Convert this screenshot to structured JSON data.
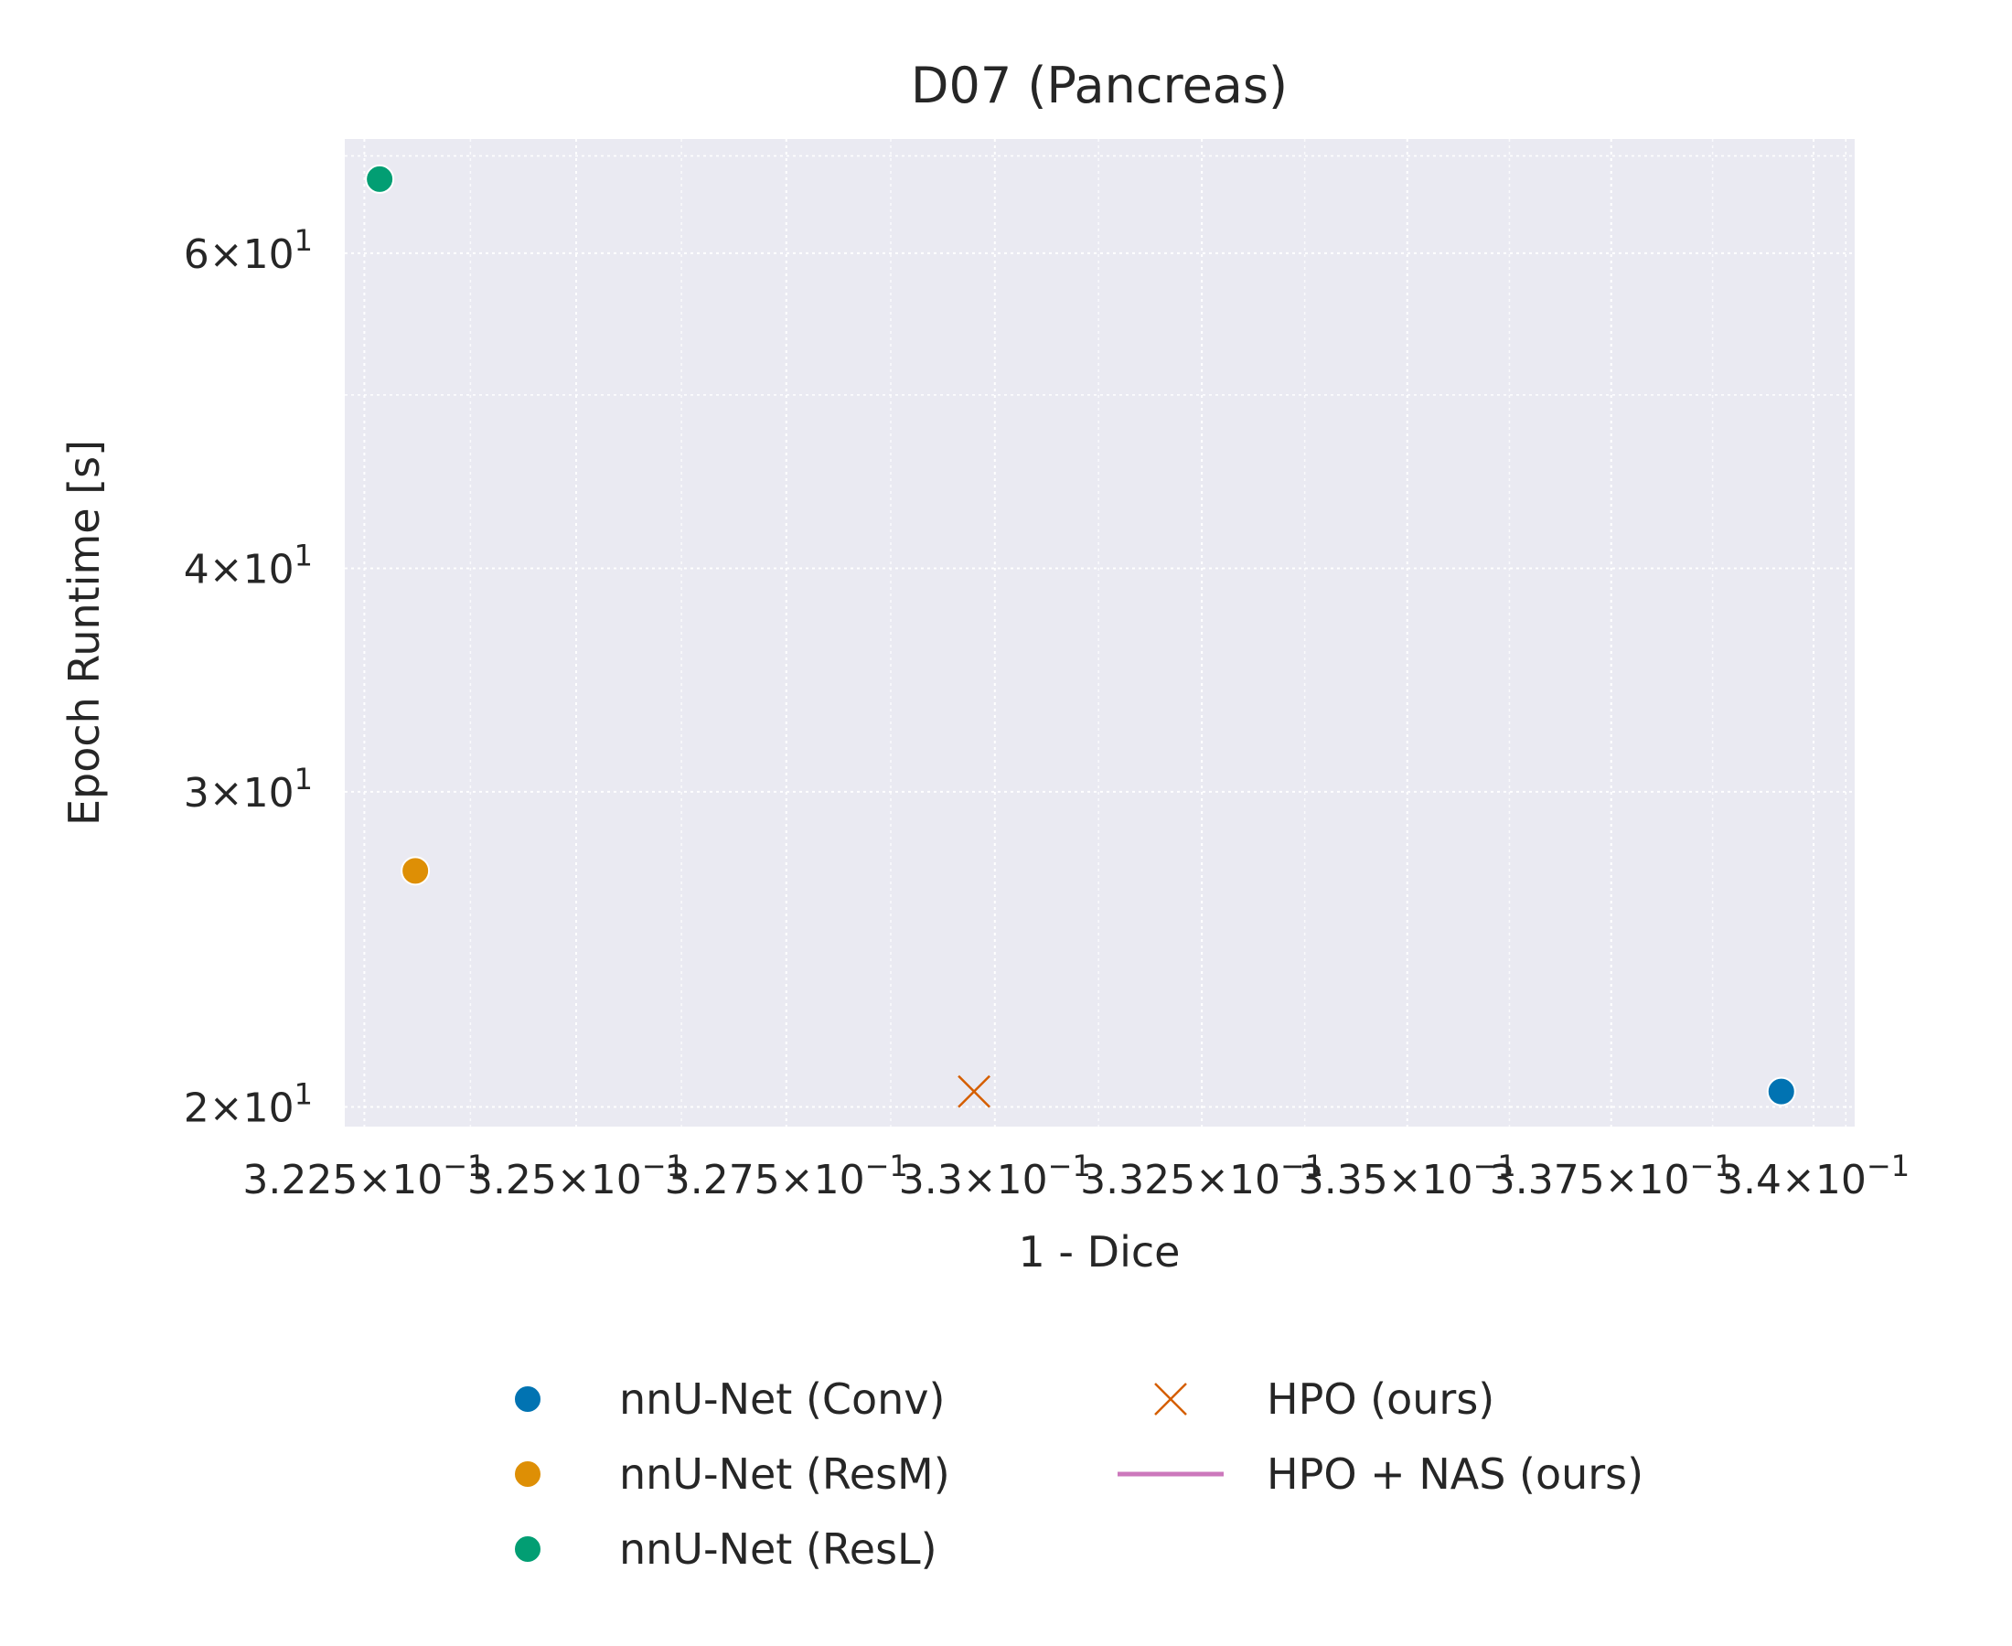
{
  "chart_data": {
    "type": "scatter",
    "title": "D07 (Pancreas)",
    "xlabel": "1 - Dice",
    "ylabel": "Epoch Runtime [s]",
    "xscale": "log",
    "yscale": "log",
    "xlim": [
      0.32227,
      0.34051
    ],
    "ylim": [
      19.5,
      69.5
    ],
    "xticks": [
      {
        "value": 0.3225,
        "mantissa": "3.225",
        "exp": "−1"
      },
      {
        "value": 0.325,
        "mantissa": "3.25",
        "exp": "−1"
      },
      {
        "value": 0.3275,
        "mantissa": "3.275",
        "exp": "−1"
      },
      {
        "value": 0.33,
        "mantissa": "3.3",
        "exp": "−1"
      },
      {
        "value": 0.3325,
        "mantissa": "3.325",
        "exp": "−1"
      },
      {
        "value": 0.335,
        "mantissa": "3.35",
        "exp": "−1"
      },
      {
        "value": 0.3375,
        "mantissa": "3.375",
        "exp": "−1"
      },
      {
        "value": 0.34,
        "mantissa": "3.4",
        "exp": "−1"
      }
    ],
    "yticks": [
      {
        "value": 20,
        "mantissa": "2",
        "exp": "1"
      },
      {
        "value": 30,
        "mantissa": "3",
        "exp": "1"
      },
      {
        "value": 40,
        "mantissa": "4",
        "exp": "1"
      },
      {
        "value": 60,
        "mantissa": "6",
        "exp": "1"
      }
    ],
    "yminor_ticks": [
      50
    ],
    "grid": true,
    "legend_position": "bottom-center",
    "series": [
      {
        "name": "nnU-Net (Conv)",
        "marker": "circle",
        "color": "#0173b2",
        "points": [
          {
            "x": 0.3396,
            "y": 20.4
          }
        ]
      },
      {
        "name": "nnU-Net (ResM)",
        "marker": "circle",
        "color": "#de8f05",
        "points": [
          {
            "x": 0.3231,
            "y": 27.1
          }
        ]
      },
      {
        "name": "nnU-Net (ResL)",
        "marker": "circle",
        "color": "#029e73",
        "points": [
          {
            "x": 0.32268,
            "y": 66.0
          }
        ]
      },
      {
        "name": "HPO (ours)",
        "marker": "x",
        "color": "#d55e00",
        "points": [
          {
            "x": 0.32975,
            "y": 20.4
          }
        ]
      },
      {
        "name": "HPO + NAS (ours)",
        "marker": "line",
        "color": "#cc78bc",
        "points": []
      }
    ],
    "legend_order": [
      0,
      1,
      2,
      3,
      4
    ],
    "colors": {
      "plot_bg": "#eaeaf2",
      "grid": "#ffffff",
      "text": "#262626"
    }
  }
}
